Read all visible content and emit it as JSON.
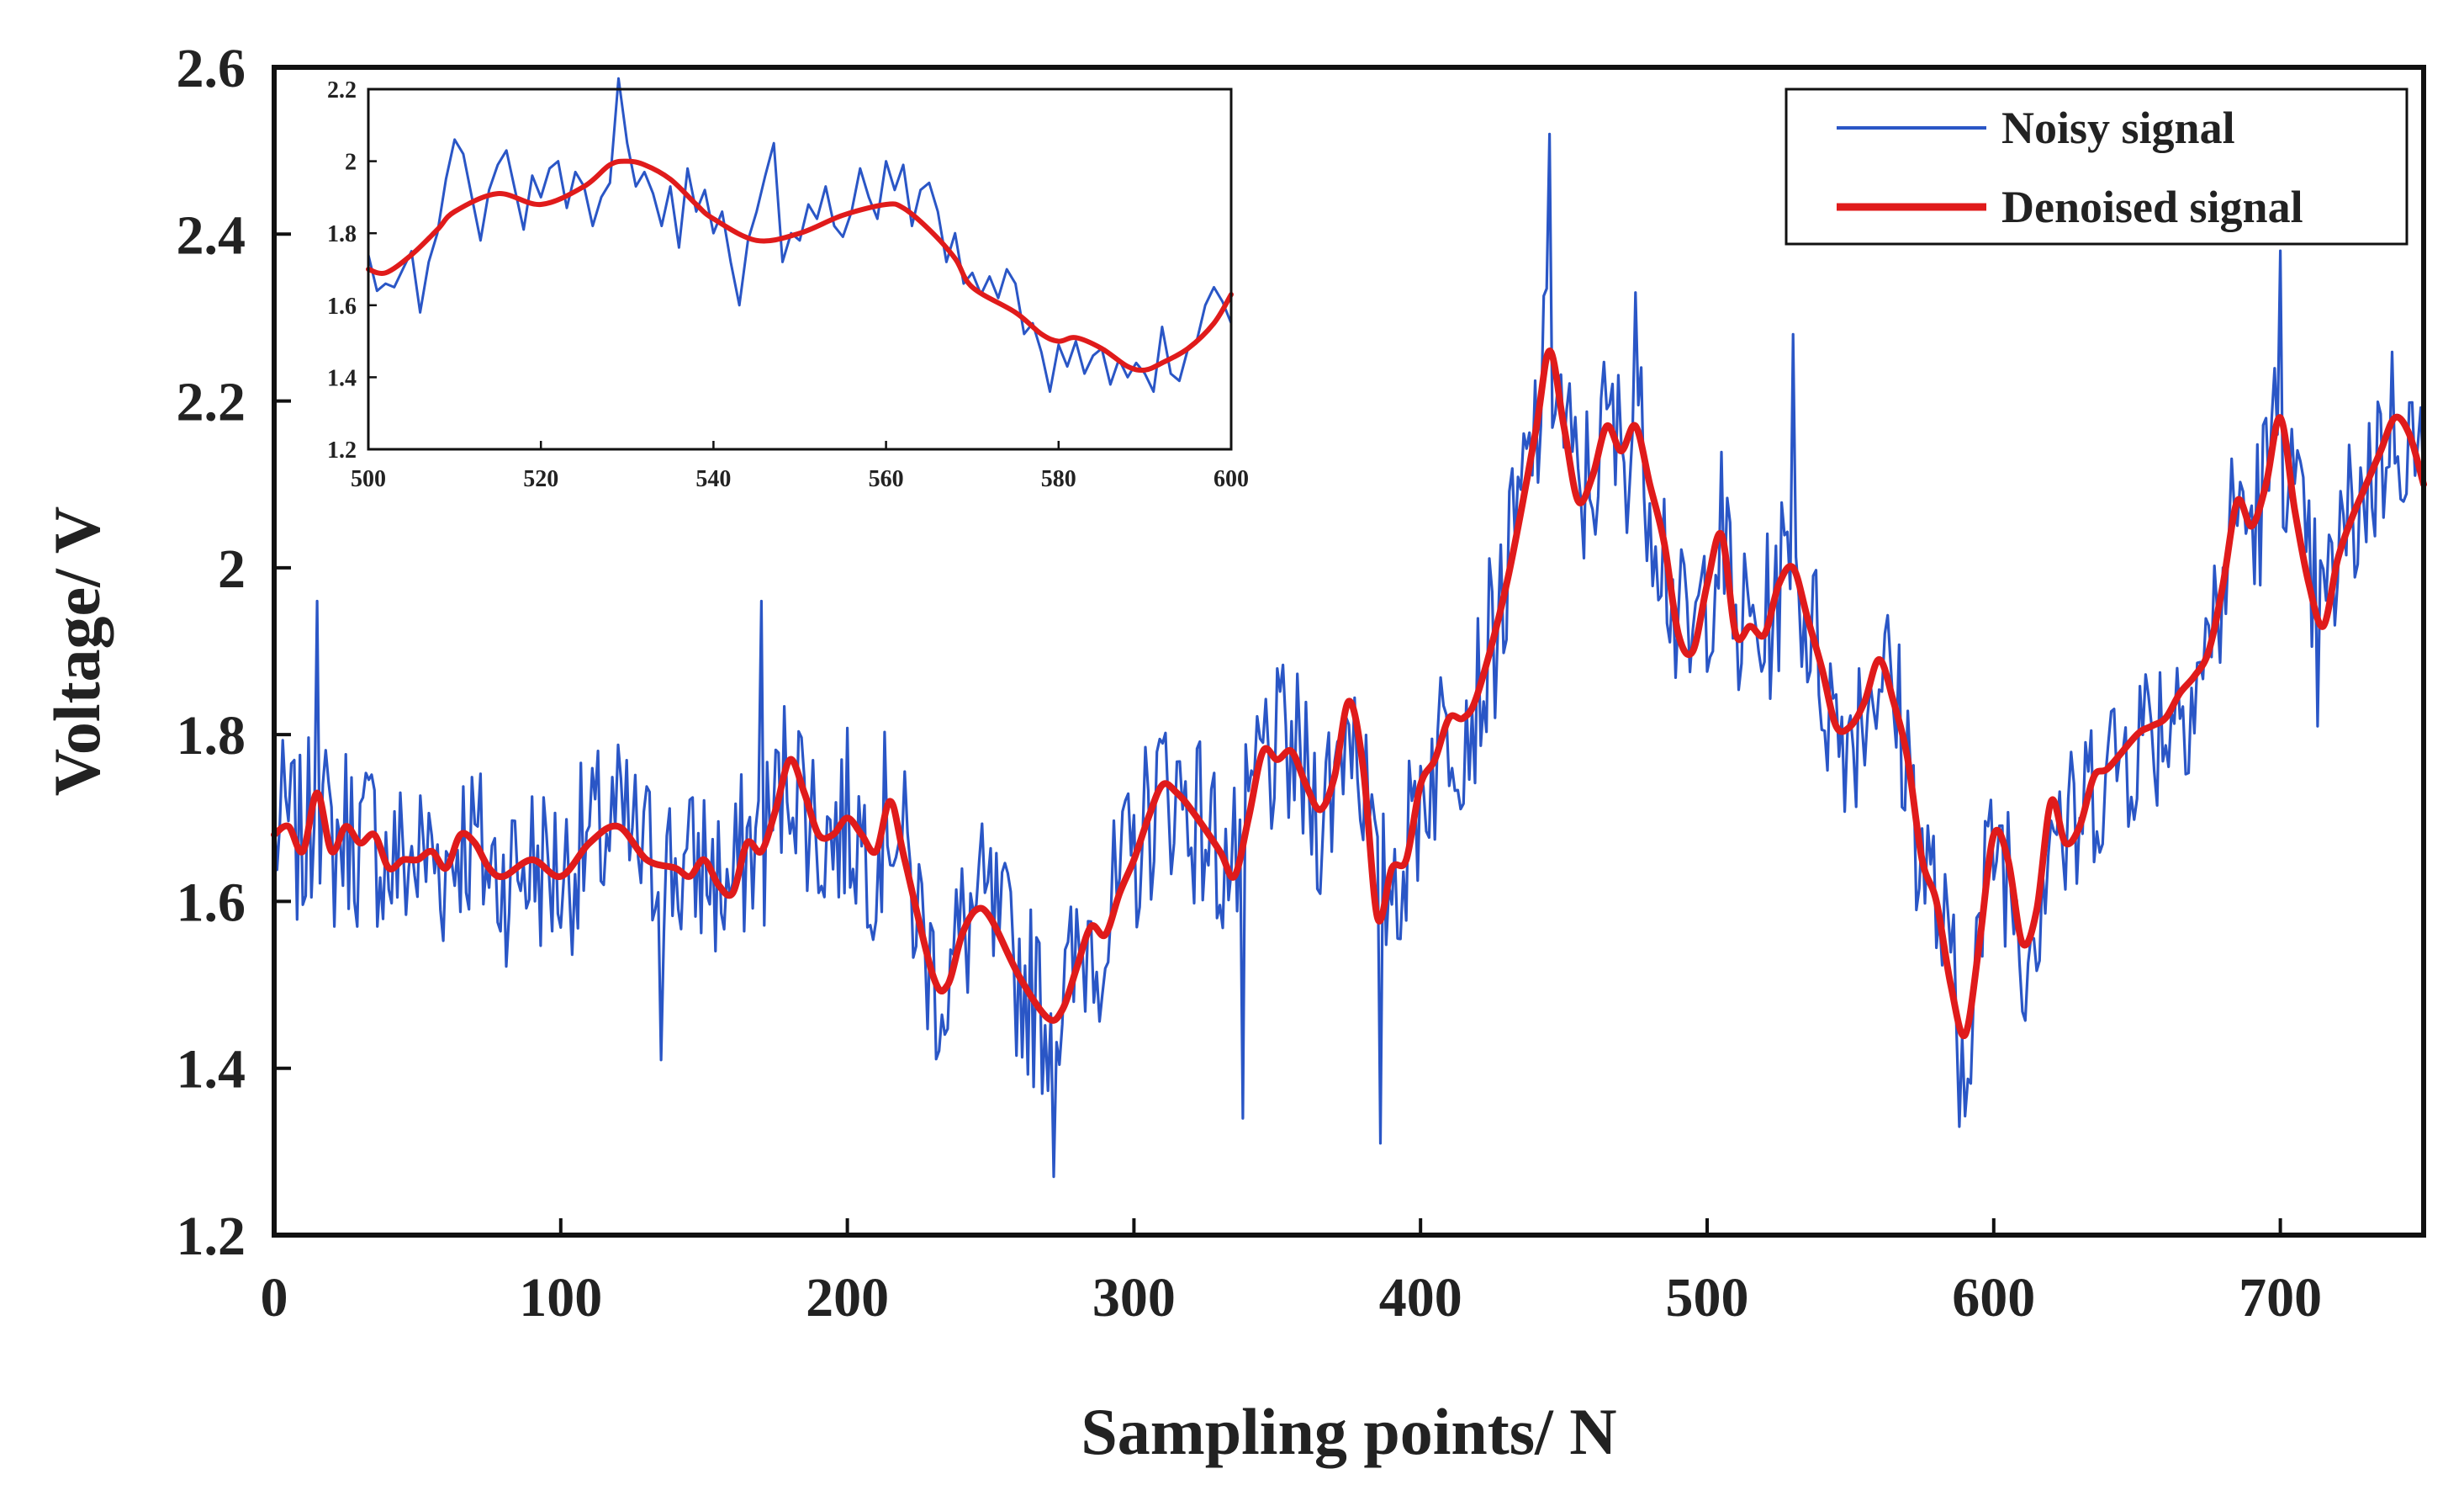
{
  "chart_data": [
    {
      "id": "main",
      "type": "line",
      "title": "",
      "xlabel": "Sampling points/ N",
      "ylabel": "Voltage/ V",
      "xlim": [
        0,
        750
      ],
      "ylim": [
        1.2,
        2.6
      ],
      "xticks": [
        0,
        100,
        200,
        300,
        400,
        500,
        600,
        700
      ],
      "xtick_labels": [
        "0",
        "100",
        "200",
        "300",
        "400",
        "500",
        "600",
        "700"
      ],
      "yticks": [
        1.2,
        1.4,
        1.6,
        1.8,
        2.0,
        2.2,
        2.4,
        2.6
      ],
      "ytick_labels": [
        "1.2",
        "1.4",
        "1.6",
        "1.8",
        "2",
        "2.2",
        "2.4",
        "2.6"
      ],
      "grid": false,
      "legend_position": "top-right",
      "legend": [
        {
          "label": "Noisy signal",
          "color": "#2a56c6"
        },
        {
          "label": "Denoised signal",
          "color": "#e01b1b"
        }
      ],
      "noise_amplitude": 0.11,
      "noise_seed": 7,
      "spikes": [
        {
          "x": 15,
          "y": 1.96
        },
        {
          "x": 135,
          "y": 1.41
        },
        {
          "x": 170,
          "y": 1.96
        },
        {
          "x": 272,
          "y": 1.27
        },
        {
          "x": 338,
          "y": 1.34
        },
        {
          "x": 386,
          "y": 1.31
        },
        {
          "x": 445,
          "y": 2.52
        },
        {
          "x": 475,
          "y": 2.33
        },
        {
          "x": 530,
          "y": 2.28
        },
        {
          "x": 588,
          "y": 1.33
        },
        {
          "x": 700,
          "y": 2.38
        },
        {
          "x": 713,
          "y": 1.81
        }
      ],
      "series": [
        {
          "name": "Denoised signal",
          "color": "#e01b1b",
          "x": [
            0,
            5,
            10,
            15,
            20,
            25,
            30,
            35,
            40,
            45,
            50,
            55,
            60,
            65,
            70,
            75,
            80,
            90,
            100,
            110,
            120,
            130,
            140,
            145,
            150,
            155,
            160,
            165,
            170,
            175,
            180,
            185,
            190,
            195,
            200,
            205,
            210,
            215,
            220,
            230,
            235,
            240,
            245,
            250,
            260,
            270,
            275,
            280,
            285,
            290,
            295,
            300,
            305,
            310,
            315,
            320,
            330,
            335,
            340,
            345,
            350,
            355,
            360,
            365,
            370,
            375,
            380,
            385,
            390,
            395,
            400,
            405,
            410,
            415,
            420,
            430,
            440,
            445,
            450,
            455,
            460,
            465,
            470,
            475,
            480,
            485,
            490,
            495,
            500,
            505,
            510,
            515,
            520,
            525,
            530,
            535,
            540,
            545,
            550,
            555,
            560,
            565,
            570,
            575,
            580,
            585,
            590,
            595,
            600,
            605,
            610,
            615,
            620,
            625,
            630,
            635,
            640,
            650,
            655,
            660,
            665,
            670,
            675,
            680,
            685,
            690,
            695,
            700,
            705,
            710,
            715,
            720,
            725,
            730,
            735,
            740,
            745,
            750
          ],
          "y": [
            1.68,
            1.69,
            1.66,
            1.73,
            1.66,
            1.69,
            1.67,
            1.68,
            1.64,
            1.65,
            1.65,
            1.66,
            1.64,
            1.68,
            1.67,
            1.64,
            1.63,
            1.65,
            1.63,
            1.67,
            1.69,
            1.65,
            1.64,
            1.63,
            1.65,
            1.62,
            1.61,
            1.67,
            1.66,
            1.71,
            1.77,
            1.73,
            1.68,
            1.68,
            1.7,
            1.68,
            1.66,
            1.72,
            1.65,
            1.51,
            1.5,
            1.56,
            1.59,
            1.58,
            1.51,
            1.46,
            1.47,
            1.52,
            1.57,
            1.56,
            1.61,
            1.65,
            1.7,
            1.74,
            1.73,
            1.71,
            1.66,
            1.63,
            1.7,
            1.78,
            1.77,
            1.78,
            1.74,
            1.71,
            1.75,
            1.84,
            1.76,
            1.58,
            1.64,
            1.65,
            1.74,
            1.77,
            1.82,
            1.82,
            1.85,
            1.98,
            2.16,
            2.26,
            2.17,
            2.08,
            2.11,
            2.17,
            2.14,
            2.17,
            2.1,
            2.03,
            1.92,
            1.9,
            1.98,
            2.04,
            1.92,
            1.93,
            1.92,
            1.98,
            2.0,
            1.94,
            1.88,
            1.81,
            1.81,
            1.84,
            1.89,
            1.84,
            1.77,
            1.65,
            1.6,
            1.5,
            1.44,
            1.55,
            1.68,
            1.65,
            1.55,
            1.59,
            1.72,
            1.67,
            1.69,
            1.75,
            1.76,
            1.8,
            1.81,
            1.82,
            1.85,
            1.87,
            1.9,
            1.98,
            2.08,
            2.05,
            2.1,
            2.18,
            2.07,
            1.98,
            1.93,
            2.01,
            2.06,
            2.1,
            2.14,
            2.18,
            2.16,
            2.1
          ]
        },
        {
          "name": "Noisy signal",
          "color": "#2a56c6",
          "note": "denoised curve plus deterministic noise (noise_amplitude, noise_seed) and listed spikes"
        }
      ]
    },
    {
      "id": "inset",
      "type": "line",
      "title": "",
      "xlabel": "",
      "ylabel": "",
      "xlim": [
        500,
        600
      ],
      "ylim": [
        1.2,
        2.2
      ],
      "xticks": [
        500,
        520,
        540,
        560,
        580,
        600
      ],
      "xtick_labels": [
        "500",
        "520",
        "540",
        "560",
        "580",
        "600"
      ],
      "yticks": [
        1.2,
        1.4,
        1.6,
        1.8,
        2.0,
        2.2
      ],
      "ytick_labels": [
        "1.2",
        "1.4",
        "1.6",
        "1.8",
        "2",
        "2.2"
      ],
      "grid": false,
      "legend_position": "none",
      "series": [
        {
          "name": "Denoised signal",
          "color": "#e01b1b",
          "x": [
            500,
            502,
            505,
            508,
            510,
            515,
            520,
            525,
            528,
            530,
            532,
            535,
            538,
            540,
            545,
            550,
            555,
            560,
            562,
            565,
            568,
            570,
            575,
            578,
            580,
            582,
            585,
            588,
            590,
            592,
            595,
            598,
            600
          ],
          "y": [
            1.7,
            1.69,
            1.74,
            1.81,
            1.86,
            1.91,
            1.88,
            1.93,
            1.99,
            2.0,
            1.99,
            1.95,
            1.88,
            1.84,
            1.78,
            1.8,
            1.85,
            1.88,
            1.87,
            1.81,
            1.73,
            1.65,
            1.58,
            1.52,
            1.5,
            1.51,
            1.48,
            1.43,
            1.42,
            1.44,
            1.48,
            1.55,
            1.63
          ]
        },
        {
          "name": "Noisy signal",
          "color": "#2a56c6",
          "x": [
            500,
            501,
            502,
            503,
            504,
            505,
            506,
            507,
            508,
            509,
            510,
            511,
            512,
            513,
            514,
            515,
            516,
            517,
            518,
            519,
            520,
            521,
            522,
            523,
            524,
            525,
            526,
            527,
            528,
            529,
            530,
            531,
            532,
            533,
            534,
            535,
            536,
            537,
            538,
            539,
            540,
            541,
            542,
            543,
            544,
            545,
            546,
            547,
            548,
            549,
            550,
            551,
            552,
            553,
            554,
            555,
            556,
            557,
            558,
            559,
            560,
            561,
            562,
            563,
            564,
            565,
            566,
            567,
            568,
            569,
            570,
            571,
            572,
            573,
            574,
            575,
            576,
            577,
            578,
            579,
            580,
            581,
            582,
            583,
            584,
            585,
            586,
            587,
            588,
            589,
            590,
            591,
            592,
            593,
            594,
            595,
            596,
            597,
            598,
            599,
            600
          ],
          "y": [
            1.74,
            1.64,
            1.66,
            1.65,
            1.7,
            1.75,
            1.58,
            1.72,
            1.8,
            1.95,
            2.06,
            2.02,
            1.9,
            1.78,
            1.92,
            1.99,
            2.03,
            1.92,
            1.81,
            1.96,
            1.9,
            1.98,
            2.0,
            1.87,
            1.97,
            1.93,
            1.82,
            1.9,
            1.94,
            2.23,
            2.05,
            1.93,
            1.97,
            1.91,
            1.82,
            1.93,
            1.76,
            1.98,
            1.86,
            1.92,
            1.8,
            1.86,
            1.72,
            1.6,
            1.78,
            1.86,
            1.96,
            2.05,
            1.72,
            1.8,
            1.78,
            1.88,
            1.84,
            1.93,
            1.82,
            1.79,
            1.86,
            1.98,
            1.9,
            1.84,
            2.0,
            1.92,
            1.99,
            1.82,
            1.92,
            1.94,
            1.86,
            1.72,
            1.8,
            1.66,
            1.69,
            1.63,
            1.68,
            1.62,
            1.7,
            1.66,
            1.52,
            1.55,
            1.47,
            1.36,
            1.49,
            1.43,
            1.5,
            1.41,
            1.46,
            1.48,
            1.38,
            1.45,
            1.4,
            1.44,
            1.41,
            1.36,
            1.54,
            1.41,
            1.39,
            1.48,
            1.5,
            1.6,
            1.65,
            1.61,
            1.55
          ]
        }
      ]
    }
  ]
}
